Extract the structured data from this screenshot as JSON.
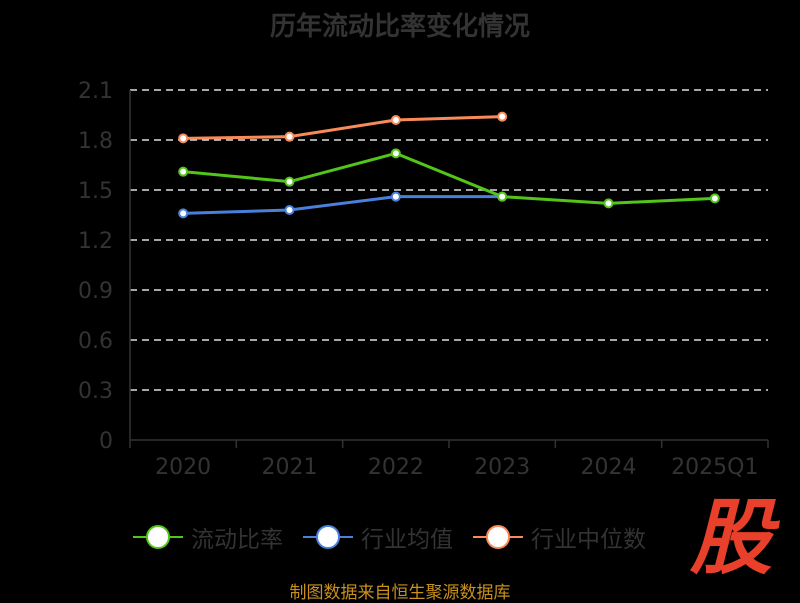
{
  "chart_data": {
    "type": "line",
    "title": "历年流动比率变化情况",
    "categories": [
      "2020",
      "2021",
      "2022",
      "2023",
      "2024",
      "2025Q1"
    ],
    "ylim": [
      0,
      2.1
    ],
    "yticks": [
      "0",
      "0.3",
      "0.6",
      "0.9",
      "1.2",
      "1.5",
      "1.8",
      "2.1"
    ],
    "grid": true,
    "legend_position": "bottom",
    "series": [
      {
        "name": "流动比率",
        "color": "#52c41a",
        "values": [
          1.61,
          1.55,
          1.72,
          1.46,
          1.42,
          1.45
        ]
      },
      {
        "name": "行业均值",
        "color": "#4a7fdc",
        "values": [
          1.36,
          1.38,
          1.46,
          1.46,
          null,
          null
        ]
      },
      {
        "name": "行业中位数",
        "color": "#f98b5a",
        "values": [
          1.81,
          1.82,
          1.92,
          1.94,
          null,
          null
        ]
      }
    ]
  },
  "source": "制图数据来自恒生聚源数据库",
  "logo_text": "股"
}
